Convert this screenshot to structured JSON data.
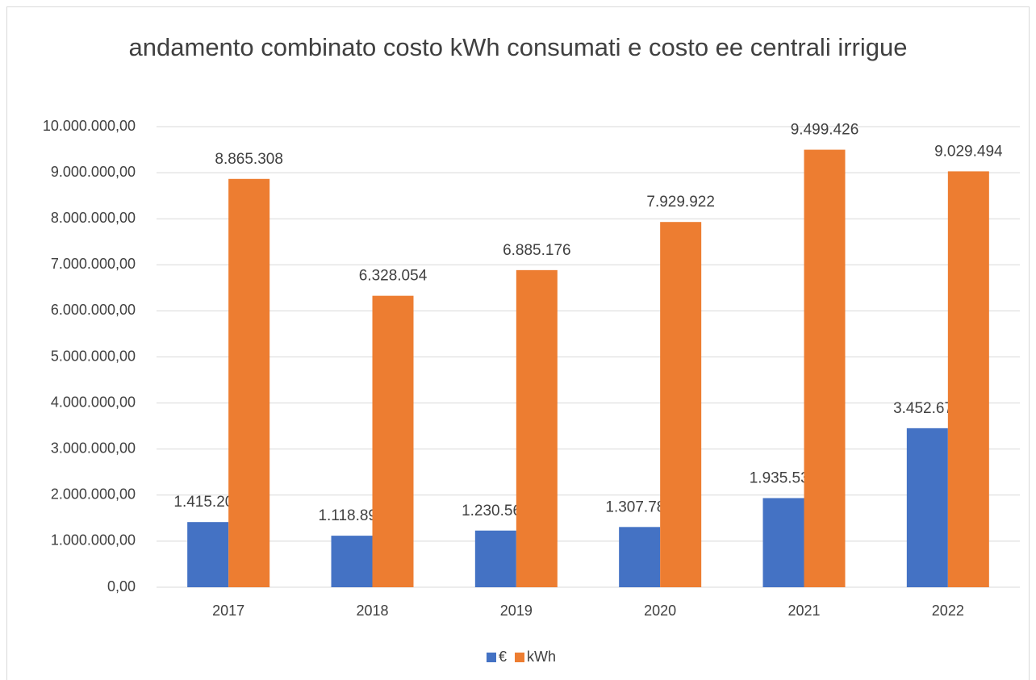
{
  "chart_data": {
    "type": "bar",
    "title": "andamento combinato costo kWh consumati e costo ee centrali irrigue",
    "categories": [
      "2017",
      "2018",
      "2019",
      "2020",
      "2021",
      "2022"
    ],
    "series": [
      {
        "name": "€",
        "color": "#4472c4",
        "values": [
          1415203,
          1118898,
          1230569,
          1307784,
          1935530,
          3452674
        ],
        "value_labels": [
          "1.415.203",
          "1.118.898",
          "1.230.569",
          "1.307.784",
          "1.935.530",
          "3.452.674"
        ]
      },
      {
        "name": "kWh",
        "color": "#ed7d31",
        "values": [
          8865308,
          6328054,
          6885176,
          7929922,
          9499426,
          9029494
        ],
        "value_labels": [
          "8.865.308",
          "6.328.054",
          "6.885.176",
          "7.929.922",
          "9.499.426",
          "9.029.494"
        ]
      }
    ],
    "ylim": [
      0,
      10000000
    ],
    "yticks": [
      {
        "value": 0,
        "label": "0,00"
      },
      {
        "value": 1000000,
        "label": "1.000.000,00"
      },
      {
        "value": 2000000,
        "label": "2.000.000,00"
      },
      {
        "value": 3000000,
        "label": "3.000.000,00"
      },
      {
        "value": 4000000,
        "label": "4.000.000,00"
      },
      {
        "value": 5000000,
        "label": "5.000.000,00"
      },
      {
        "value": 6000000,
        "label": "6.000.000,00"
      },
      {
        "value": 7000000,
        "label": "7.000.000,00"
      },
      {
        "value": 8000000,
        "label": "8.000.000,00"
      },
      {
        "value": 9000000,
        "label": "9.000.000,00"
      },
      {
        "value": 10000000,
        "label": "10.000.000,00"
      }
    ],
    "grid": true,
    "legend": "bottom"
  }
}
